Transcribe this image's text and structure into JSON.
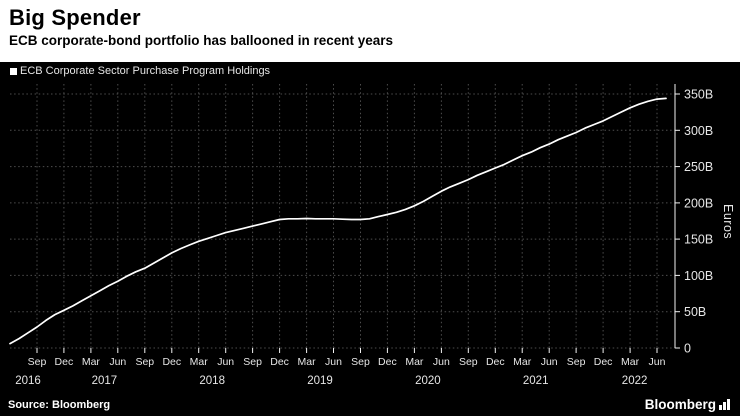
{
  "header": {
    "title": "Big Spender",
    "subtitle": "ECB corporate-bond portfolio has ballooned in recent years"
  },
  "legend": {
    "label": "ECB Corporate Sector Purchase Program Holdings"
  },
  "footer": {
    "source": "Source: Bloomberg",
    "brand": "Bloomberg"
  },
  "colors": {
    "background": "#000000",
    "header_bg": "#ffffff",
    "header_text": "#000000",
    "line": "#ffffff",
    "grid": "#4d4d4d",
    "axis": "#f2f2f2",
    "text": "#e6e6e6"
  },
  "chart_data": {
    "type": "line",
    "title": "Big Spender",
    "subtitle": "ECB corporate-bond portfolio has ballooned in recent years",
    "ylabel": "Euros",
    "unit": "EUR billions",
    "grid": "dotted",
    "legend_position": "top-left",
    "ylim": [
      0,
      350
    ],
    "yticks": [
      0,
      50,
      100,
      150,
      200,
      250,
      300,
      350
    ],
    "ytick_labels": [
      "0",
      "50B",
      "100B",
      "150B",
      "200B",
      "250B",
      "300B",
      "350B"
    ],
    "x_unit": "months since June 2016",
    "x_max": 74,
    "xticks": [
      {
        "m": 3,
        "label": "Sep"
      },
      {
        "m": 6,
        "label": "Dec"
      },
      {
        "m": 9,
        "label": "Mar"
      },
      {
        "m": 12,
        "label": "Jun"
      },
      {
        "m": 15,
        "label": "Sep"
      },
      {
        "m": 18,
        "label": "Dec"
      },
      {
        "m": 21,
        "label": "Mar"
      },
      {
        "m": 24,
        "label": "Jun"
      },
      {
        "m": 27,
        "label": "Sep"
      },
      {
        "m": 30,
        "label": "Dec"
      },
      {
        "m": 33,
        "label": "Mar"
      },
      {
        "m": 36,
        "label": "Jun"
      },
      {
        "m": 39,
        "label": "Sep"
      },
      {
        "m": 42,
        "label": "Dec"
      },
      {
        "m": 45,
        "label": "Mar"
      },
      {
        "m": 48,
        "label": "Jun"
      },
      {
        "m": 51,
        "label": "Sep"
      },
      {
        "m": 54,
        "label": "Dec"
      },
      {
        "m": 57,
        "label": "Mar"
      },
      {
        "m": 60,
        "label": "Jun"
      },
      {
        "m": 63,
        "label": "Sep"
      },
      {
        "m": 66,
        "label": "Dec"
      },
      {
        "m": 69,
        "label": "Mar"
      },
      {
        "m": 72,
        "label": "Jun"
      }
    ],
    "year_labels": [
      {
        "m": 2,
        "label": "2016"
      },
      {
        "m": 10.5,
        "label": "2017"
      },
      {
        "m": 22.5,
        "label": "2018"
      },
      {
        "m": 34.5,
        "label": "2019"
      },
      {
        "m": 46.5,
        "label": "2020"
      },
      {
        "m": 58.5,
        "label": "2021"
      },
      {
        "m": 69.5,
        "label": "2022"
      }
    ],
    "series": [
      {
        "name": "ECB Corporate Sector Purchase Program Holdings",
        "start_month": "2016-06",
        "values": [
          6,
          13,
          21,
          29,
          38,
          46,
          52,
          58,
          65,
          72,
          79,
          86,
          92,
          99,
          105,
          110,
          117,
          124,
          131,
          137,
          142,
          147,
          151,
          155,
          159,
          162,
          165,
          168,
          171,
          174,
          177,
          178,
          178,
          178.5,
          178,
          178,
          178,
          177.5,
          177,
          177,
          178,
          181,
          184,
          187,
          191,
          196,
          202,
          209,
          216,
          222,
          227,
          232,
          238,
          243,
          248,
          253,
          259,
          265,
          270,
          276,
          281,
          287,
          292,
          297,
          303,
          308,
          313,
          319,
          325,
          331,
          336,
          340,
          343,
          344
        ]
      }
    ]
  }
}
